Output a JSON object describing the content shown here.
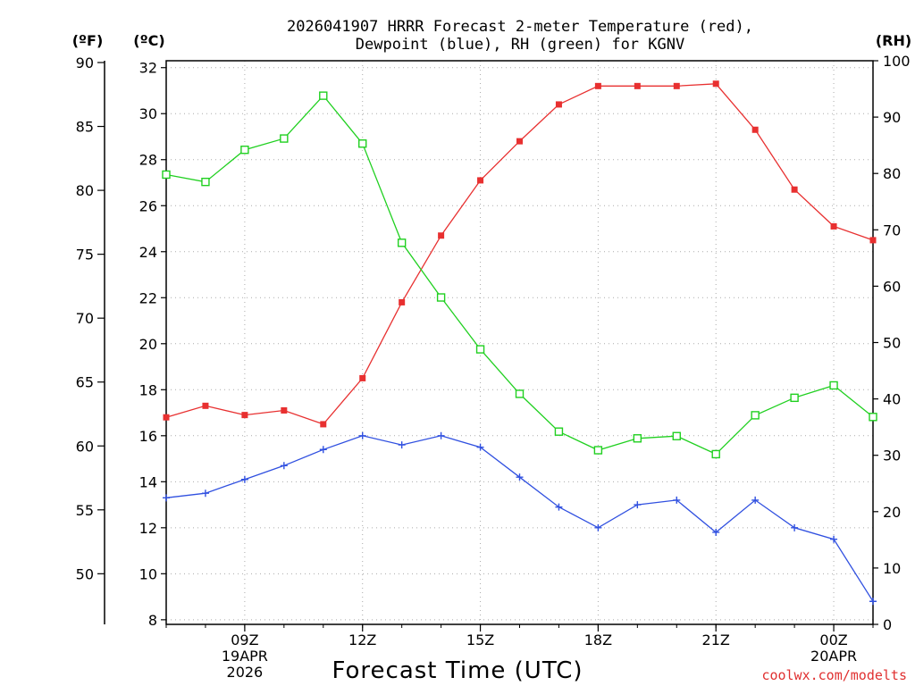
{
  "chart_data": {
    "type": "line",
    "title_line1": "2026041907 HRRR Forecast 2-meter Temperature (red),",
    "title_line2": "Dewpoint (blue), RH (green) for KGNV",
    "xlabel": "Forecast Time (UTC)",
    "credit": "coolwx.com/modelts",
    "axes": {
      "fahrenheit_label": "(ºF)",
      "celsius_label": "(ºC)",
      "rh_label": "(RH)",
      "celsius_ylim": [
        7.8,
        32.3
      ],
      "celsius_ticks": [
        "8",
        "10",
        "12",
        "14",
        "16",
        "18",
        "20",
        "22",
        "24",
        "26",
        "28",
        "30",
        "32"
      ],
      "fahrenheit_ticks": [
        "50",
        "55",
        "60",
        "65",
        "70",
        "75",
        "80",
        "85",
        "90"
      ],
      "rh_ticks": [
        "0",
        "10",
        "20",
        "30",
        "40",
        "50",
        "60",
        "70",
        "80",
        "90",
        "100"
      ],
      "rh_ylim": [
        0,
        100
      ],
      "x_hour_range": [
        7,
        25
      ]
    },
    "x_ticks": [
      {
        "hour": 9,
        "lines": [
          "09Z",
          "19APR",
          "2026"
        ]
      },
      {
        "hour": 12,
        "lines": [
          "12Z"
        ]
      },
      {
        "hour": 15,
        "lines": [
          "15Z"
        ]
      },
      {
        "hour": 18,
        "lines": [
          "18Z"
        ]
      },
      {
        "hour": 21,
        "lines": [
          "21Z"
        ]
      },
      {
        "hour": 24,
        "lines": [
          "00Z",
          "20APR"
        ]
      }
    ],
    "x": [
      7,
      8,
      9,
      10,
      11,
      12,
      13,
      14,
      15,
      16,
      17,
      18,
      19,
      20,
      21,
      22,
      23,
      24,
      25
    ],
    "series": [
      {
        "name": "2-meter Temperature",
        "unit": "C",
        "color": "#e83030",
        "marker": "filled-square",
        "values": [
          16.8,
          17.3,
          16.9,
          17.1,
          16.5,
          18.5,
          21.8,
          24.7,
          27.1,
          28.8,
          30.4,
          31.2,
          31.2,
          31.2,
          31.3,
          29.3,
          26.7,
          25.1,
          24.5
        ]
      },
      {
        "name": "Dewpoint",
        "unit": "C",
        "color": "#3050e0",
        "marker": "plus",
        "values": [
          13.3,
          13.5,
          14.1,
          14.7,
          15.4,
          16.0,
          15.6,
          16.0,
          15.5,
          14.2,
          12.9,
          12.0,
          13.0,
          13.2,
          11.8,
          13.2,
          12.0,
          11.5,
          8.8
        ]
      },
      {
        "name": "RH",
        "unit": "%",
        "color": "#20d020",
        "marker": "open-square",
        "values": [
          79.8,
          78.5,
          84.2,
          86.2,
          93.8,
          85.3,
          67.7,
          58.0,
          48.8,
          40.9,
          34.2,
          30.9,
          33.0,
          33.4,
          30.2,
          37.1,
          40.2,
          42.4,
          36.8
        ]
      }
    ]
  }
}
